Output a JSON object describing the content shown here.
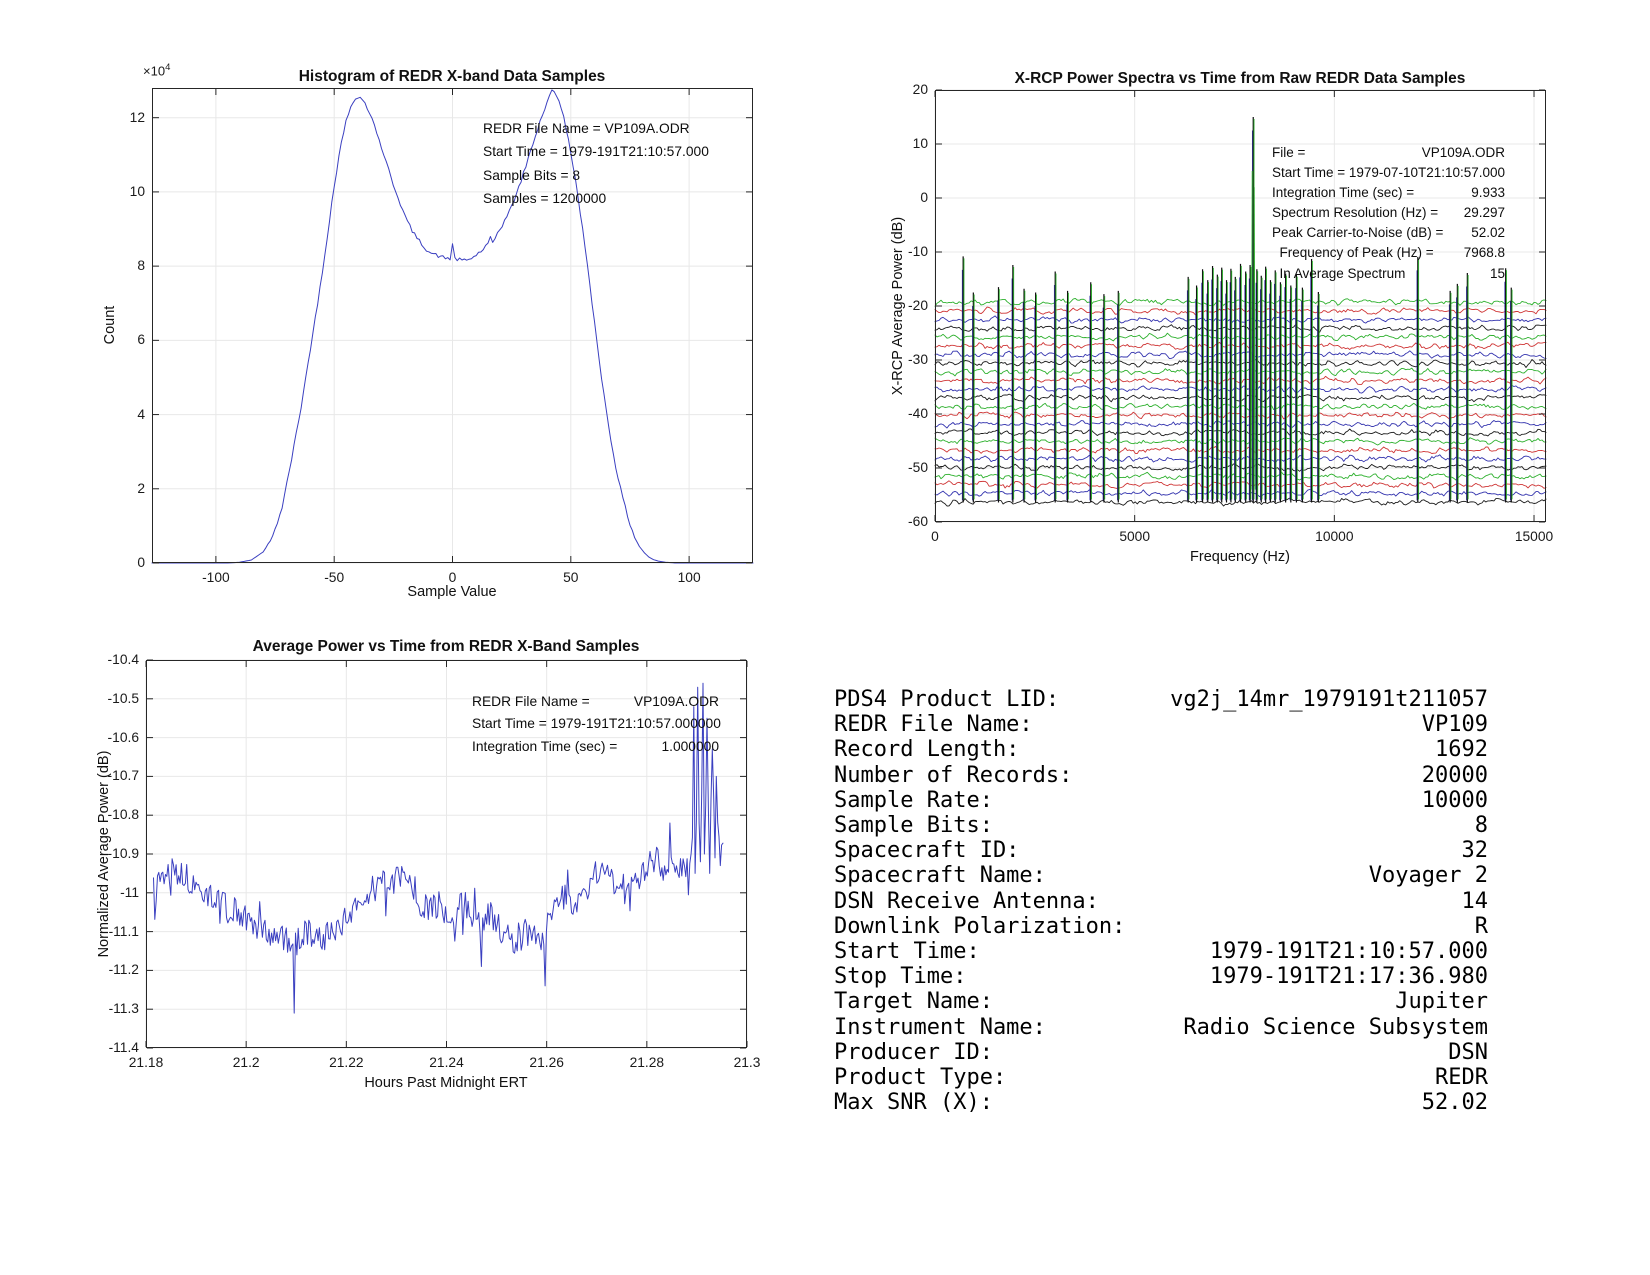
{
  "page": {
    "background": "#ffffff"
  },
  "chart_data": [
    {
      "id": "histogram",
      "type": "line",
      "title": "Histogram of REDR X-band Data Samples",
      "xlabel": "Sample Value",
      "ylabel": "Count",
      "y_exponent_base": "×10",
      "y_exponent_power": "4",
      "xlim": [
        -127,
        127
      ],
      "ylim_1e4": [
        0,
        12.8
      ],
      "xticks": [
        -100,
        -50,
        0,
        50,
        100
      ],
      "xtick_labels": [
        "-100",
        "-50",
        "0",
        "50",
        "100"
      ],
      "yticks_1e4": [
        0,
        2,
        4,
        6,
        8,
        10,
        12
      ],
      "ytick_labels": [
        "0",
        "2",
        "4",
        "6",
        "8",
        "10",
        "12"
      ],
      "grid": true,
      "line_color": "#3a3fc0",
      "annotation_lines": [
        "REDR File Name = VP109A.ODR",
        "Start Time = 1979-191T21:10:57.000",
        "Sample Bits = 8",
        "Samples = 1200000"
      ],
      "anchors_x_count1e4": [
        [
          -127,
          0
        ],
        [
          -95,
          0
        ],
        [
          -90,
          0.02
        ],
        [
          -85,
          0.08
        ],
        [
          -80,
          0.3
        ],
        [
          -76,
          0.7
        ],
        [
          -72,
          1.5
        ],
        [
          -68,
          2.8
        ],
        [
          -64,
          4.2
        ],
        [
          -60,
          5.8
        ],
        [
          -57,
          7.0
        ],
        [
          -54,
          8.3
        ],
        [
          -51,
          9.7
        ],
        [
          -48,
          11.0
        ],
        [
          -45,
          11.9
        ],
        [
          -43,
          12.3
        ],
        [
          -41,
          12.5
        ],
        [
          -39,
          12.55
        ],
        [
          -37,
          12.4
        ],
        [
          -35,
          12.15
        ],
        [
          -33,
          11.8
        ],
        [
          -31,
          11.4
        ],
        [
          -29,
          11.0
        ],
        [
          -27,
          10.6
        ],
        [
          -25,
          10.2
        ],
        [
          -23,
          9.85
        ],
        [
          -21,
          9.5
        ],
        [
          -19,
          9.2
        ],
        [
          -17,
          8.95
        ],
        [
          -15,
          8.75
        ],
        [
          -13,
          8.6
        ],
        [
          -11,
          8.45
        ],
        [
          -9,
          8.35
        ],
        [
          -7,
          8.3
        ],
        [
          -5,
          8.25
        ],
        [
          -3,
          8.22
        ],
        [
          -1,
          8.2
        ],
        [
          0,
          8.6
        ],
        [
          1,
          8.2
        ],
        [
          3,
          8.17
        ],
        [
          5,
          8.15
        ],
        [
          7,
          8.18
        ],
        [
          9,
          8.25
        ],
        [
          11,
          8.35
        ],
        [
          13,
          8.45
        ],
        [
          15,
          8.6
        ],
        [
          16,
          8.75
        ],
        [
          17,
          8.6
        ],
        [
          19,
          8.9
        ],
        [
          21,
          9.1
        ],
        [
          23,
          9.35
        ],
        [
          25,
          9.6
        ],
        [
          27,
          9.95
        ],
        [
          29,
          10.3
        ],
        [
          31,
          10.7
        ],
        [
          33,
          11.1
        ],
        [
          35,
          11.5
        ],
        [
          37,
          11.9
        ],
        [
          39,
          12.25
        ],
        [
          41,
          12.6
        ],
        [
          42,
          12.75
        ],
        [
          43,
          12.7
        ],
        [
          45,
          12.45
        ],
        [
          47,
          12.0
        ],
        [
          49,
          11.4
        ],
        [
          51,
          10.7
        ],
        [
          53,
          9.9
        ],
        [
          55,
          9.0
        ],
        [
          57,
          8.0
        ],
        [
          59,
          7.0
        ],
        [
          61,
          6.0
        ],
        [
          63,
          5.0
        ],
        [
          65,
          4.1
        ],
        [
          67,
          3.3
        ],
        [
          69,
          2.6
        ],
        [
          71,
          2.0
        ],
        [
          73,
          1.5
        ],
        [
          75,
          1.05
        ],
        [
          77,
          0.7
        ],
        [
          79,
          0.45
        ],
        [
          81,
          0.28
        ],
        [
          83,
          0.16
        ],
        [
          85,
          0.09
        ],
        [
          87,
          0.05
        ],
        [
          90,
          0.02
        ],
        [
          94,
          0
        ],
        [
          127,
          0
        ]
      ],
      "stats": {
        "samples": 1200000,
        "sample_bits": 8
      }
    },
    {
      "id": "spectra",
      "type": "multi-line",
      "title": "X-RCP Power Spectra vs Time from Raw REDR Data Samples",
      "xlabel": "Frequency (Hz)",
      "ylabel": "X-RCP Average Power (dB)",
      "xlim": [
        0,
        15300
      ],
      "ylim": [
        -60,
        20
      ],
      "xticks": [
        0,
        5000,
        10000,
        15000
      ],
      "xtick_labels": [
        "0",
        "5000",
        "10000",
        "15000"
      ],
      "yticks": [
        20,
        10,
        0,
        -10,
        -20,
        -30,
        -40,
        -50,
        -60
      ],
      "ytick_labels": [
        "20",
        "10",
        "0",
        "-10",
        "-20",
        "-30",
        "-40",
        "-50",
        "-60"
      ],
      "grid": true,
      "annotation_rows": [
        {
          "label": "File =",
          "value": "VP109A.ODR"
        },
        {
          "label": "Start Time = 1979-07-10T21:10:57.000",
          "value": ""
        },
        {
          "label": "Integration Time (sec) =",
          "value": "9.933"
        },
        {
          "label": "Spectrum Resolution (Hz) =",
          "value": "29.297"
        },
        {
          "label": "Peak Carrier-to-Noise (dB) =",
          "value": "52.02"
        },
        {
          "label": "  Frequency of Peak (Hz) =",
          "value": "7968.8"
        },
        {
          "label": "  In Average Spectrum",
          "value": "15"
        }
      ],
      "num_traces": 24,
      "trace_top_db": -19.3,
      "trace_spacing_db": 1.61,
      "trace_colors": [
        "#2db02d",
        "#cf3535",
        "#3333ae",
        "#1b1b1b"
      ],
      "noise_amp_db": 0.8,
      "carrier": {
        "freq_hz": 7968.8,
        "peak_db": 15,
        "carrier_to_noise_db": 52.02,
        "spectra_in_average": 15
      },
      "spikes": [
        [
          705,
          -10.8
        ],
        [
          960,
          -17.5
        ],
        [
          1590,
          -16.5
        ],
        [
          1950,
          -12.4
        ],
        [
          2230,
          -16.8
        ],
        [
          2520,
          -17.5
        ],
        [
          3010,
          -13.6
        ],
        [
          3320,
          -17.2
        ],
        [
          3900,
          -15.6
        ],
        [
          4230,
          -17.8
        ],
        [
          4590,
          -17.2
        ],
        [
          6340,
          -14.6
        ],
        [
          6550,
          -16.2
        ],
        [
          6700,
          -13.2
        ],
        [
          6830,
          -15.2
        ],
        [
          6950,
          -12.6
        ],
        [
          7070,
          -14.2
        ],
        [
          7180,
          -12.9
        ],
        [
          7300,
          -15.2
        ],
        [
          7410,
          -13.1
        ],
        [
          7520,
          -14.6
        ],
        [
          7650,
          -12.2
        ],
        [
          7780,
          -13.6
        ],
        [
          7890,
          -12.4
        ],
        [
          7968.8,
          15
        ],
        [
          8060,
          -13.2
        ],
        [
          8170,
          -14.4
        ],
        [
          8280,
          -12.7
        ],
        [
          8400,
          -15.2
        ],
        [
          8520,
          -13.4
        ],
        [
          8650,
          -15.6
        ],
        [
          8780,
          -14.0
        ],
        [
          8910,
          -16.2
        ],
        [
          9050,
          -14.2
        ],
        [
          9200,
          -16.6
        ],
        [
          9430,
          -11.3
        ],
        [
          9600,
          -17.4
        ],
        [
          12090,
          -10.9
        ],
        [
          12900,
          -17.2
        ],
        [
          13080,
          -15.9
        ],
        [
          13330,
          -13.9
        ],
        [
          14290,
          -13.0
        ],
        [
          14430,
          -16.6
        ]
      ]
    },
    {
      "id": "avgpower",
      "type": "line",
      "title": "Average Power vs Time from REDR X-Band Samples",
      "xlabel": "Hours Past Midnight ERT",
      "ylabel": "Normalized Average Power (dB)",
      "xlim": [
        21.18,
        21.3
      ],
      "ylim": [
        -11.4,
        -10.4
      ],
      "xticks": [
        21.18,
        21.2,
        21.22,
        21.24,
        21.26,
        21.28,
        21.3
      ],
      "xtick_labels": [
        "21.18",
        "21.2",
        "21.22",
        "21.24",
        "21.26",
        "21.28",
        "21.3"
      ],
      "yticks": [
        -10.4,
        -10.5,
        -10.6,
        -10.7,
        -10.8,
        -10.9,
        -11,
        -11.1,
        -11.2,
        -11.3,
        -11.4
      ],
      "ytick_labels": [
        "-10.4",
        "-10.5",
        "-10.6",
        "-10.7",
        "-10.8",
        "-10.9",
        "-11",
        "-11.1",
        "-11.2",
        "-11.3",
        "-11.4"
      ],
      "grid": true,
      "line_color": "#3a3fc0",
      "annotation_rows": [
        {
          "label": "REDR File Name =",
          "value": "VP109A.ODR"
        },
        {
          "label": "Start Time = 1979-191T21:10:57.000000",
          "value": ""
        },
        {
          "label": "Integration Time (sec) =",
          "value": "1.000000"
        }
      ],
      "t_range": [
        21.1815,
        21.2952
      ],
      "mean_anchors": [
        [
          21.181,
          -10.97
        ],
        [
          21.185,
          -10.94
        ],
        [
          21.188,
          -10.96
        ],
        [
          21.191,
          -11.0
        ],
        [
          21.195,
          -11.02
        ],
        [
          21.199,
          -11.06
        ],
        [
          21.203,
          -11.1
        ],
        [
          21.207,
          -11.11
        ],
        [
          21.2095,
          -11.13
        ],
        [
          21.212,
          -11.1
        ],
        [
          21.215,
          -11.12
        ],
        [
          21.218,
          -11.09
        ],
        [
          21.221,
          -11.06
        ],
        [
          21.2235,
          -11.02
        ],
        [
          21.226,
          -10.96
        ],
        [
          21.2285,
          -10.99
        ],
        [
          21.231,
          -10.95
        ],
        [
          21.2335,
          -11.0
        ],
        [
          21.236,
          -11.05
        ],
        [
          21.2385,
          -11.03
        ],
        [
          21.241,
          -11.06
        ],
        [
          21.2435,
          -11.02
        ],
        [
          21.246,
          -11.09
        ],
        [
          21.2485,
          -11.05
        ],
        [
          21.251,
          -11.1
        ],
        [
          21.2535,
          -11.13
        ],
        [
          21.256,
          -11.1
        ],
        [
          21.2585,
          -11.13
        ],
        [
          21.261,
          -11.05
        ],
        [
          21.2635,
          -11.01
        ],
        [
          21.266,
          -11.04
        ],
        [
          21.2685,
          -10.98
        ],
        [
          21.271,
          -10.93
        ],
        [
          21.2735,
          -10.97
        ],
        [
          21.276,
          -11.0
        ],
        [
          21.2785,
          -10.96
        ],
        [
          21.281,
          -10.9
        ],
        [
          21.2835,
          -10.94
        ],
        [
          21.286,
          -10.92
        ],
        [
          21.288,
          -10.95
        ],
        [
          21.29,
          -10.8
        ],
        [
          21.292,
          -10.75
        ],
        [
          21.294,
          -10.8
        ],
        [
          21.2955,
          -10.88
        ]
      ],
      "events": [
        [
          21.2097,
          -11.31
        ],
        [
          21.2102,
          -11.16
        ],
        [
          21.247,
          -11.19
        ],
        [
          21.2596,
          -11.24
        ],
        [
          21.2845,
          -10.82
        ],
        [
          21.2893,
          -10.52
        ],
        [
          21.2897,
          -10.95
        ],
        [
          21.2902,
          -10.47
        ],
        [
          21.2906,
          -10.92
        ],
        [
          21.2911,
          -10.46
        ],
        [
          21.2916,
          -10.9
        ],
        [
          21.292,
          -10.55
        ],
        [
          21.2925,
          -10.95
        ],
        [
          21.293,
          -10.63
        ],
        [
          21.2936,
          -10.91
        ],
        [
          21.294,
          -10.7
        ],
        [
          21.2946,
          -10.93
        ]
      ],
      "extremes": {
        "min": -11.31,
        "max": -10.46
      }
    }
  ],
  "info_table": {
    "rows": [
      {
        "label": "PDS4 Product LID:",
        "value": "vg2j_14mr_1979191t211057"
      },
      {
        "label": "REDR File Name:",
        "value": "VP109"
      },
      {
        "label": "Record Length:",
        "value": "1692"
      },
      {
        "label": "Number of Records:",
        "value": "20000"
      },
      {
        "label": "Sample Rate:",
        "value": "10000"
      },
      {
        "label": "Sample Bits:",
        "value": "8"
      },
      {
        "label": "Spacecraft ID:",
        "value": "32"
      },
      {
        "label": "Spacecraft Name:",
        "value": "Voyager 2"
      },
      {
        "label": "DSN Receive Antenna:",
        "value": "14"
      },
      {
        "label": "Downlink Polarization:",
        "value": "R"
      },
      {
        "label": "Start Time:",
        "value": "1979-191T21:10:57.000"
      },
      {
        "label": "Stop Time:",
        "value": "1979-191T21:17:36.980"
      },
      {
        "label": "Target Name:",
        "value": "Jupiter"
      },
      {
        "label": "Instrument Name:",
        "value": "Radio Science Subsystem"
      },
      {
        "label": "Producer ID:",
        "value": "DSN"
      },
      {
        "label": "Product Type:",
        "value": "REDR"
      },
      {
        "label": "Max SNR (X):",
        "value": "52.02"
      }
    ]
  },
  "colors": {
    "grid": "#e8e8e8",
    "axis": "#262626",
    "text": "#1a1a1a",
    "series_blue": "#3a3fc0",
    "spectra_green": "#2db02d",
    "spectra_red": "#cf3535",
    "spectra_navy": "#3333ae",
    "spectra_black": "#1b1b1b"
  }
}
